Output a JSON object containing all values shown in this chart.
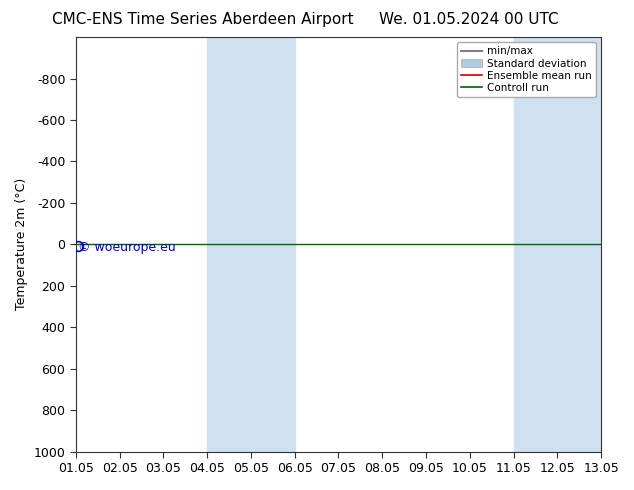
{
  "title_left": "CMC-ENS Time Series Aberdeen Airport",
  "title_right": "We. 01.05.2024 00 UTC",
  "ylabel": "Temperature 2m (°C)",
  "ylim_top": -1000,
  "ylim_bottom": 1000,
  "yticks": [
    -800,
    -600,
    -400,
    -200,
    0,
    200,
    400,
    600,
    800,
    1000
  ],
  "xtick_labels": [
    "01.05",
    "02.05",
    "03.05",
    "04.05",
    "05.05",
    "06.05",
    "07.05",
    "08.05",
    "09.05",
    "10.05",
    "11.05",
    "12.05",
    "13.05"
  ],
  "xtick_positions": [
    0,
    1,
    2,
    3,
    4,
    5,
    6,
    7,
    8,
    9,
    10,
    11,
    12
  ],
  "shaded_bands": [
    {
      "x_start": 3,
      "x_end": 5
    },
    {
      "x_start": 10,
      "x_end": 12
    }
  ],
  "shade_color": "#cfe0f0",
  "control_run_y": 0,
  "ensemble_mean_y": 0,
  "control_color": "#006400",
  "ensemble_color": "#cc0000",
  "minmax_color": "#808080",
  "stddev_color": "#b0cce0",
  "watermark_text": "© woeurope.eu",
  "watermark_color": "#0000cc",
  "background_color": "#ffffff",
  "plot_bg_color": "#ffffff",
  "legend_entries": [
    "min/max",
    "Standard deviation",
    "Ensemble mean run",
    "Controll run"
  ],
  "font_size": 9,
  "title_font_size": 11
}
